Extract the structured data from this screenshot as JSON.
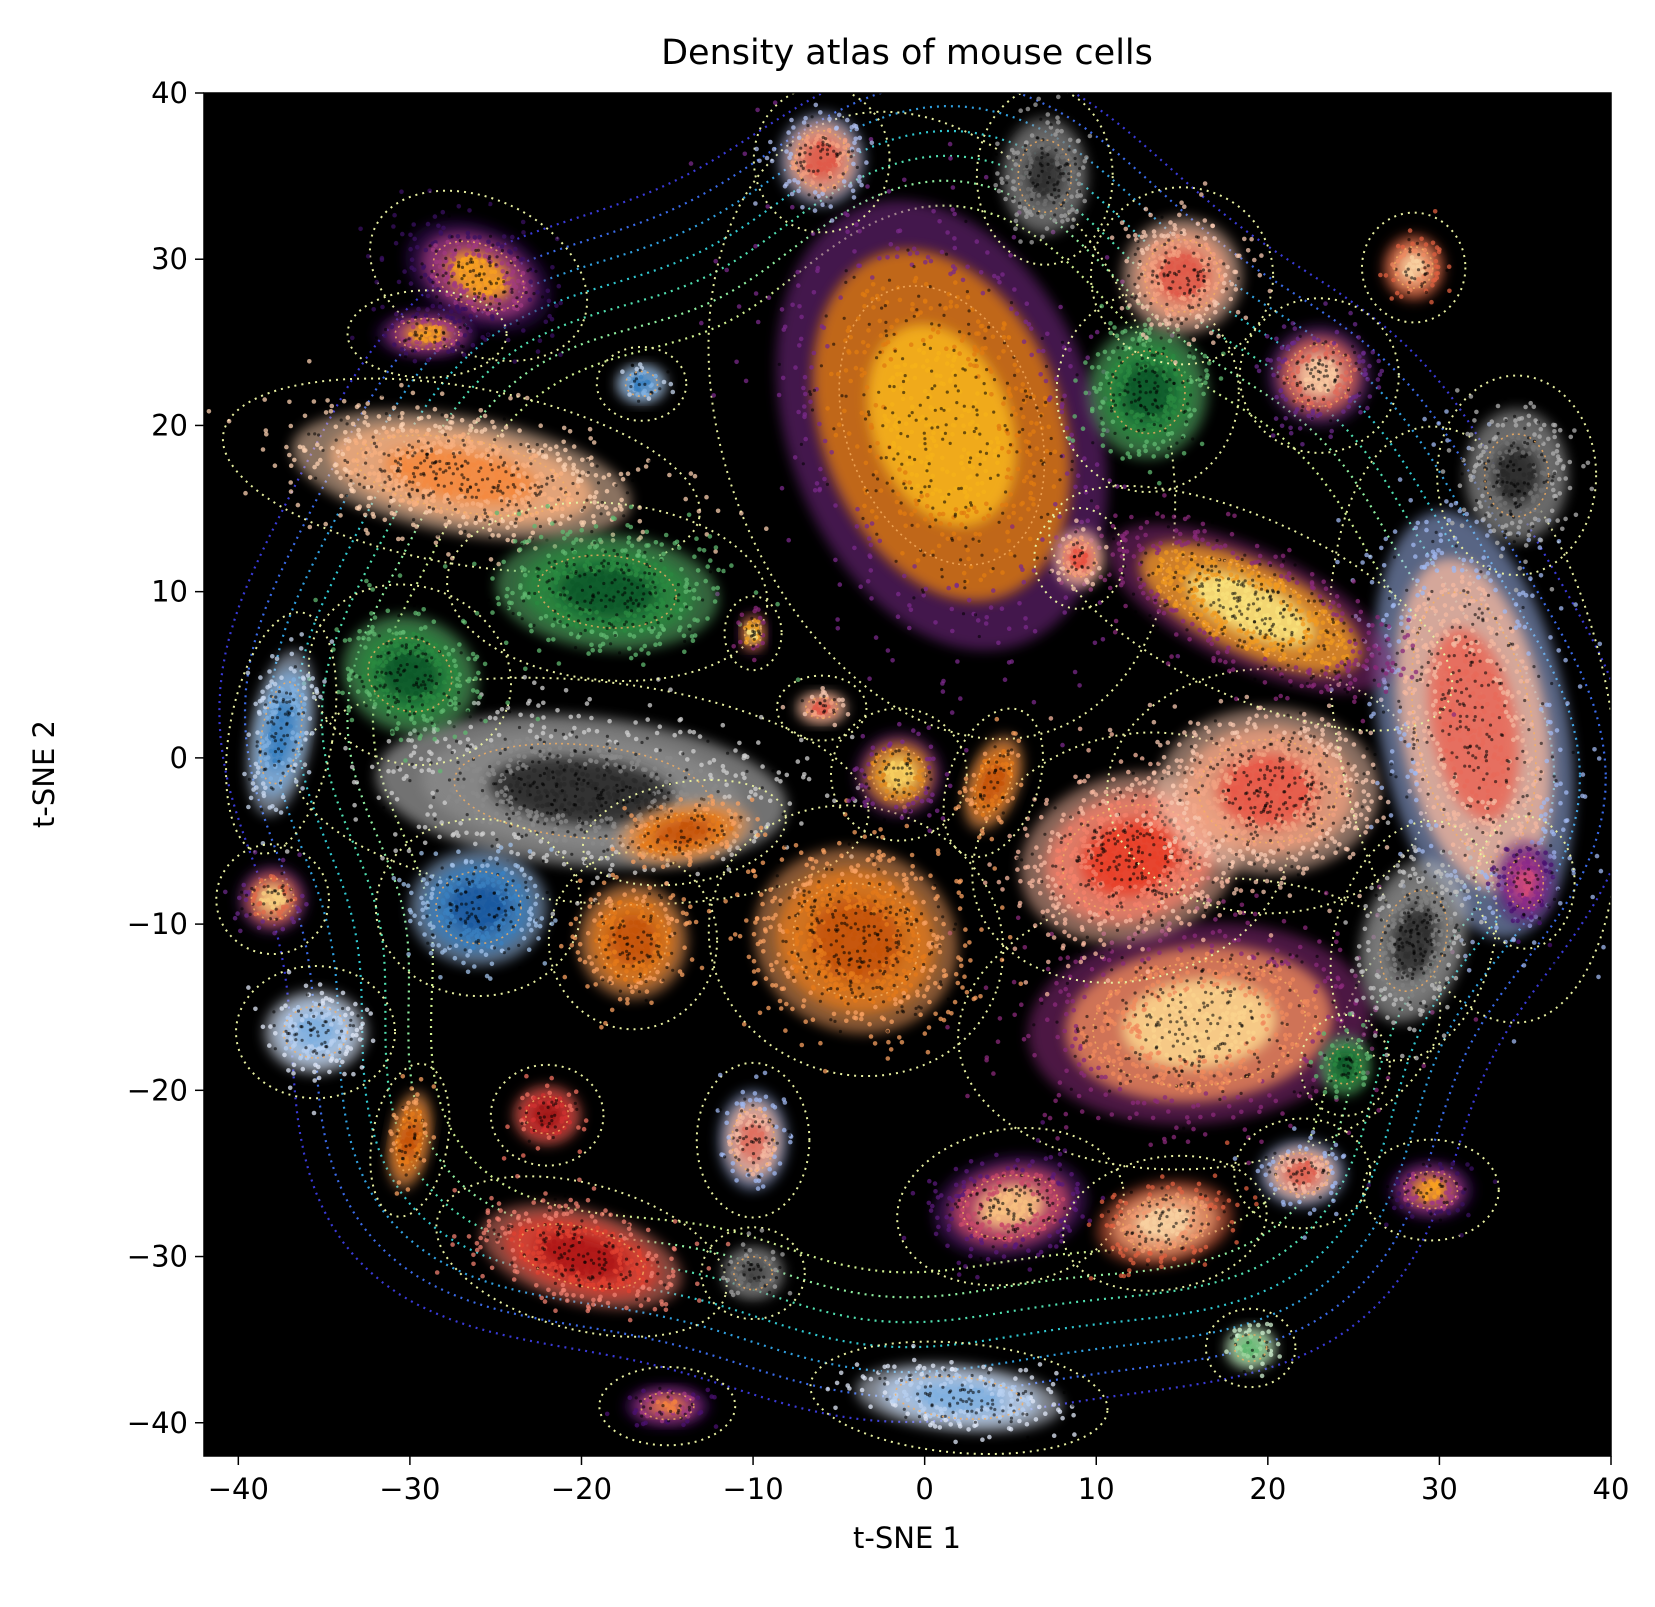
{
  "chart_data": {
    "type": "scatter",
    "title": "Density atlas of mouse cells",
    "xlabel": "t-SNE 1",
    "ylabel": "t-SNE 2",
    "xlim": [
      -42,
      40
    ],
    "ylim": [
      -42,
      40
    ],
    "xticks": [
      -40,
      -30,
      -20,
      -10,
      0,
      10,
      20,
      30,
      40
    ],
    "yticks": [
      -40,
      -30,
      -20,
      -10,
      0,
      10,
      20,
      30,
      40
    ],
    "xtick_labels": [
      "−40",
      "−30",
      "−20",
      "−10",
      "0",
      "10",
      "20",
      "30",
      "40"
    ],
    "ytick_labels": [
      "−40",
      "−30",
      "−20",
      "−10",
      "0",
      "10",
      "20",
      "30",
      "40"
    ],
    "background": "#000000",
    "grid": false,
    "legend": "none",
    "clusters": [
      {
        "cx": 1,
        "cy": 20,
        "rx": 9,
        "ry": 14,
        "rot": -20,
        "colormap": "inferno",
        "core": "#f6b21a",
        "mid": "#e07b10",
        "edge": "#7a2a8a"
      },
      {
        "cx": -20,
        "cy": -2,
        "rx": 12,
        "ry": 4.5,
        "rot": 5,
        "colormap": "greys",
        "core": "#2a2a2a",
        "mid": "#8a8a8a",
        "edge": "#d0d0d0"
      },
      {
        "cx": 16,
        "cy": -16,
        "rx": 10,
        "ry": 6,
        "rot": -5,
        "colormap": "magma",
        "core": "#fbd38c",
        "mid": "#f08a5c",
        "edge": "#8a2a7a"
      },
      {
        "cx": 12,
        "cy": -6,
        "rx": 6.5,
        "ry": 5,
        "rot": -15,
        "colormap": "reds",
        "core": "#e8402a",
        "mid": "#f4806a",
        "edge": "#f8b8a0"
      },
      {
        "cx": 20,
        "cy": -2,
        "rx": 6.5,
        "ry": 5,
        "rot": 0,
        "colormap": "reds-light",
        "core": "#e85a4a",
        "mid": "#f0a080",
        "edge": "#f8c8b0"
      },
      {
        "cx": 32,
        "cy": 2,
        "rx": 5.5,
        "ry": 13,
        "rot": -10,
        "colormap": "coolwarm",
        "core": "#e86a5a",
        "mid": "#f4b8a0",
        "edge": "#a0b8f0"
      },
      {
        "cx": 19,
        "cy": 9,
        "rx": 9,
        "ry": 3.5,
        "rot": 25,
        "colormap": "inferno",
        "core": "#f8e07a",
        "mid": "#f09a20",
        "edge": "#8a2a7a"
      },
      {
        "cx": -4,
        "cy": -11,
        "rx": 6,
        "ry": 5.5,
        "rot": 20,
        "colormap": "oranges",
        "core": "#c65408",
        "mid": "#e47a1a",
        "edge": "#f8a060"
      },
      {
        "cx": -17,
        "cy": -11,
        "rx": 3.2,
        "ry": 3.5,
        "rot": 0,
        "colormap": "oranges",
        "core": "#c65408",
        "mid": "#e47a1a",
        "edge": "#f8a060"
      },
      {
        "cx": -14,
        "cy": -4.5,
        "rx": 4,
        "ry": 1.8,
        "rot": -10,
        "colormap": "oranges",
        "core": "#c65408",
        "mid": "#e47a1a",
        "edge": "#f8a060"
      },
      {
        "cx": -27,
        "cy": 17,
        "rx": 10,
        "ry": 3.5,
        "rot": 10,
        "colormap": "oranges-light",
        "core": "#f48a40",
        "mid": "#f8b080",
        "edge": "#fcd0b0"
      },
      {
        "cx": -18.5,
        "cy": 10,
        "rx": 6.5,
        "ry": 3.5,
        "rot": 5,
        "colormap": "greens",
        "core": "#0e5a2a",
        "mid": "#2a8a40",
        "edge": "#60b870"
      },
      {
        "cx": -30,
        "cy": 5,
        "rx": 4,
        "ry": 3.5,
        "rot": 20,
        "colormap": "greens",
        "core": "#0e5a2a",
        "mid": "#2a8a40",
        "edge": "#60b870"
      },
      {
        "cx": 13,
        "cy": 22,
        "rx": 3.5,
        "ry": 4,
        "rot": 0,
        "colormap": "greens",
        "core": "#0e5a2a",
        "mid": "#2a8a40",
        "edge": "#60b870"
      },
      {
        "cx": -26,
        "cy": -9,
        "rx": 4,
        "ry": 3.5,
        "rot": 0,
        "colormap": "blues",
        "core": "#1a5aa0",
        "mid": "#3a80c0",
        "edge": "#a0c0e8"
      },
      {
        "cx": -26,
        "cy": 29,
        "rx": 4.5,
        "ry": 3,
        "rot": 25,
        "colormap": "inferno",
        "core": "#f8a020",
        "mid": "#a03a80",
        "edge": "#3a1060"
      },
      {
        "cx": -6,
        "cy": 36,
        "rx": 2.5,
        "ry": 2.8,
        "rot": 0,
        "colormap": "reds-light",
        "core": "#e05a4a",
        "mid": "#f4a080",
        "edge": "#b0c0f0"
      },
      {
        "cx": 15,
        "cy": 29,
        "rx": 3.5,
        "ry": 3.5,
        "rot": 0,
        "colormap": "reds-light",
        "core": "#e05a4a",
        "mid": "#f4a080",
        "edge": "#f8c8b0"
      },
      {
        "cx": 34.5,
        "cy": 17,
        "rx": 3,
        "ry": 4,
        "rot": 0,
        "colormap": "greys",
        "core": "#2a2a2a",
        "mid": "#707070",
        "edge": "#b0b0b0"
      },
      {
        "cx": 28.5,
        "cy": -11,
        "rx": 3,
        "ry": 5,
        "rot": 15,
        "colormap": "greys",
        "core": "#303030",
        "mid": "#808080",
        "edge": "#c0c0c0"
      },
      {
        "cx": 7,
        "cy": 35,
        "rx": 2.5,
        "ry": 3.5,
        "rot": 0,
        "colormap": "greys",
        "core": "#303030",
        "mid": "#707070",
        "edge": "#a0a0a0"
      },
      {
        "cx": 23,
        "cy": 23,
        "rx": 3,
        "ry": 3,
        "rot": 0,
        "colormap": "magma",
        "core": "#f8c8a0",
        "mid": "#e06a5a",
        "edge": "#6a2a8a"
      },
      {
        "cx": 28.5,
        "cy": 29.5,
        "rx": 1.8,
        "ry": 2,
        "rot": 0,
        "colormap": "reds-light",
        "core": "#f8d0a0",
        "mid": "#f08a60",
        "edge": "#e06040"
      },
      {
        "cx": -37.5,
        "cy": 1.5,
        "rx": 1.8,
        "ry": 5,
        "rot": 10,
        "colormap": "blues",
        "core": "#3a80c0",
        "mid": "#80b0e0",
        "edge": "#c8d8f0"
      },
      {
        "cx": -38,
        "cy": -8.5,
        "rx": 2,
        "ry": 2,
        "rot": 0,
        "colormap": "inferno",
        "core": "#f8d080",
        "mid": "#e06a4a",
        "edge": "#6a2a8a"
      },
      {
        "cx": -35.5,
        "cy": -16.5,
        "rx": 3,
        "ry": 2.5,
        "rot": 0,
        "colormap": "blues-light",
        "core": "#80b0e0",
        "mid": "#b8d0f0",
        "edge": "#e0e8f8"
      },
      {
        "cx": -30,
        "cy": -23,
        "rx": 1.2,
        "ry": 3,
        "rot": 10,
        "colormap": "oranges",
        "core": "#c65408",
        "mid": "#e47a1a",
        "edge": "#f8a060"
      },
      {
        "cx": -22,
        "cy": -21.5,
        "rx": 2,
        "ry": 1.8,
        "rot": 0,
        "colormap": "reds",
        "core": "#a01818",
        "mid": "#d03030",
        "edge": "#f07060"
      },
      {
        "cx": -20,
        "cy": -30,
        "rx": 6,
        "ry": 2.8,
        "rot": 15,
        "colormap": "reds",
        "core": "#b01818",
        "mid": "#e04030",
        "edge": "#f08070"
      },
      {
        "cx": 5,
        "cy": -27,
        "rx": 4.5,
        "ry": 3,
        "rot": -10,
        "colormap": "magma",
        "core": "#f8c080",
        "mid": "#c84a6a",
        "edge": "#5a1a7a"
      },
      {
        "cx": 14,
        "cy": -28,
        "rx": 4,
        "ry": 2.5,
        "rot": -10,
        "colormap": "reds-light",
        "core": "#f8d0a0",
        "mid": "#f09a70",
        "edge": "#e06040"
      },
      {
        "cx": -10,
        "cy": -23,
        "rx": 2,
        "ry": 3,
        "rot": 0,
        "colormap": "coolwarm",
        "core": "#e07060",
        "mid": "#f4b8a0",
        "edge": "#a0b8f0"
      },
      {
        "cx": 2,
        "cy": -38.5,
        "rx": 6,
        "ry": 2,
        "rot": 5,
        "colormap": "blues-light",
        "core": "#80b0e0",
        "mid": "#b8d0f0",
        "edge": "#e0e8f8"
      },
      {
        "cx": -15,
        "cy": -39,
        "rx": 2.5,
        "ry": 1.3,
        "rot": 0,
        "colormap": "magma",
        "core": "#f08040",
        "mid": "#a03a80",
        "edge": "#4a1070"
      },
      {
        "cx": -10,
        "cy": -31,
        "rx": 1.8,
        "ry": 1.6,
        "rot": 0,
        "colormap": "greys",
        "core": "#404040",
        "mid": "#707070",
        "edge": "#a0a0a0"
      },
      {
        "cx": 29.5,
        "cy": -26,
        "rx": 2.5,
        "ry": 1.8,
        "rot": 0,
        "colormap": "inferno",
        "core": "#f8a020",
        "mid": "#a03a80",
        "edge": "#3a1060"
      },
      {
        "cx": 22,
        "cy": -25,
        "rx": 2.5,
        "ry": 2,
        "rot": 0,
        "colormap": "coolwarm",
        "core": "#e06050",
        "mid": "#f4b8a0",
        "edge": "#a0b8f0"
      },
      {
        "cx": 24.5,
        "cy": -18.5,
        "rx": 1.5,
        "ry": 1.8,
        "rot": 0,
        "colormap": "greens",
        "core": "#0e5a2a",
        "mid": "#2a8a40",
        "edge": "#60b870"
      },
      {
        "cx": 19,
        "cy": -35.5,
        "rx": 1.5,
        "ry": 1.3,
        "rot": 0,
        "colormap": "greens-light",
        "core": "#60b870",
        "mid": "#a0d8a0",
        "edge": "#d0f0d0"
      },
      {
        "cx": 35,
        "cy": -7.5,
        "rx": 1.7,
        "ry": 2.5,
        "rot": 0,
        "colormap": "magma",
        "core": "#d04a7a",
        "mid": "#8a2a8a",
        "edge": "#4a1070"
      },
      {
        "cx": -1.5,
        "cy": -1,
        "rx": 2.5,
        "ry": 2.5,
        "rot": 0,
        "colormap": "inferno",
        "core": "#f8d060",
        "mid": "#e08a20",
        "edge": "#7a2a8a"
      },
      {
        "cx": -16.5,
        "cy": 22.5,
        "rx": 1.5,
        "ry": 1.2,
        "rot": 0,
        "colormap": "blues",
        "core": "#3a80c0",
        "mid": "#80b0e0",
        "edge": "#c8d8f0"
      },
      {
        "cx": -6,
        "cy": 3,
        "rx": 1.5,
        "ry": 1,
        "rot": 0,
        "colormap": "reds-light",
        "core": "#e05a4a",
        "mid": "#f4a080",
        "edge": "#f8c8b0"
      },
      {
        "cx": 4,
        "cy": -1.5,
        "rx": 1.5,
        "ry": 3,
        "rot": 20,
        "colormap": "oranges",
        "core": "#c65408",
        "mid": "#e47a1a",
        "edge": "#f8a060"
      },
      {
        "cx": 9,
        "cy": 12,
        "rx": 1.5,
        "ry": 1.8,
        "rot": 0,
        "colormap": "reds-light",
        "core": "#e85040",
        "mid": "#f4a080",
        "edge": "#f8c8b0"
      },
      {
        "cx": -10,
        "cy": 7.5,
        "rx": 0.8,
        "ry": 1.2,
        "rot": 0,
        "colormap": "inferno",
        "core": "#f8e080",
        "mid": "#f0a020",
        "edge": "#8a2a7a"
      },
      {
        "cx": -29,
        "cy": 25.5,
        "rx": 3,
        "ry": 1.5,
        "rot": 0,
        "colormap": "inferno",
        "core": "#f8a020",
        "mid": "#a03a80",
        "edge": "#3a1060"
      }
    ]
  }
}
